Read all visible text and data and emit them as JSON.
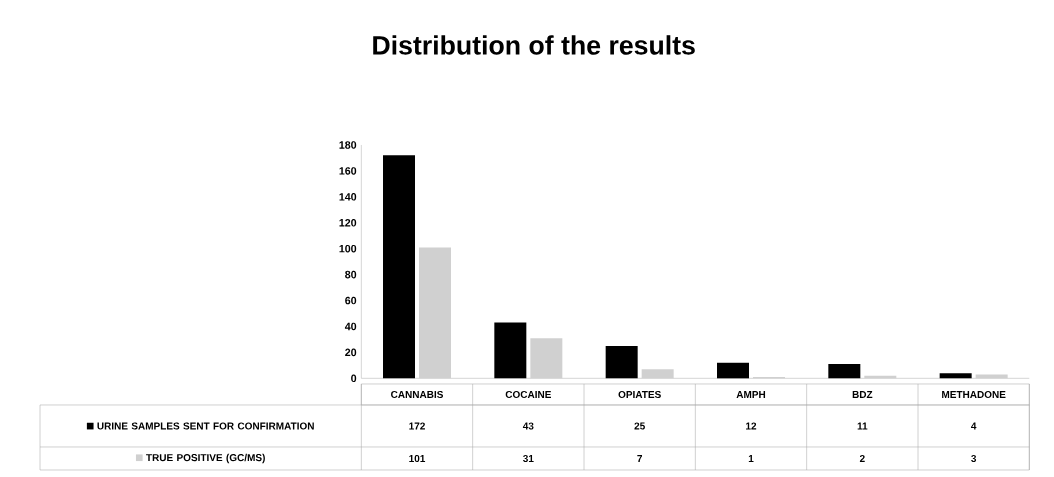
{
  "chart_data": {
    "type": "bar",
    "title": "Distribution of the results",
    "categories": [
      "CANNABIS",
      "COCAINE",
      "OPIATES",
      "AMPH",
      "BDZ",
      "METHADONE"
    ],
    "series": [
      {
        "name": "URINE SAMPLES SENT FOR CONFIRMATION",
        "color": "#000000",
        "values": [
          172,
          43,
          25,
          12,
          11,
          4
        ]
      },
      {
        "name": "TRUE POSITIVE (GC/MS)",
        "color": "#d0d0d0",
        "values": [
          101,
          31,
          7,
          1,
          2,
          3
        ]
      }
    ],
    "ylim": [
      0,
      180
    ],
    "yticks": [
      0,
      20,
      40,
      60,
      80,
      100,
      120,
      140,
      160,
      180
    ],
    "data_labels": true,
    "legend": "bottom",
    "grid": false
  }
}
